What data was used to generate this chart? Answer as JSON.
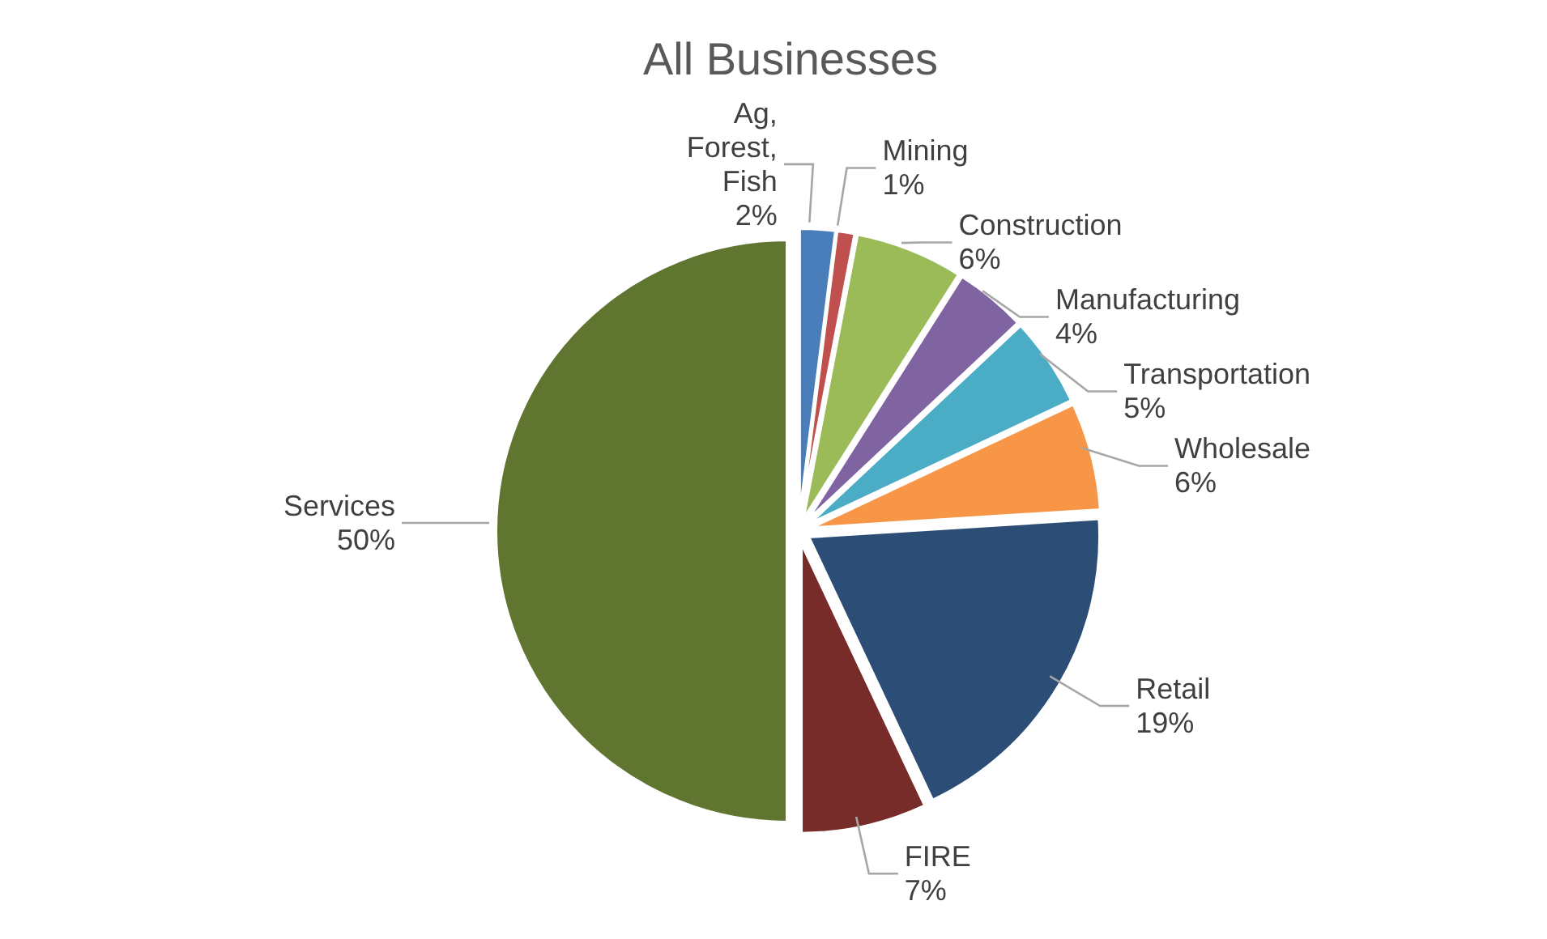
{
  "chart_data": {
    "type": "pie",
    "title": "All Businesses",
    "categories": [
      "Ag, Forest, Fish",
      "Mining",
      "Construction",
      "Manufacturing",
      "Transportation",
      "Wholesale",
      "Retail",
      "FIRE",
      "Services"
    ],
    "values": [
      2,
      1,
      6,
      4,
      5,
      6,
      19,
      7,
      50
    ],
    "value_labels": [
      "2%",
      "1%",
      "6%",
      "4%",
      "5%",
      "6%",
      "19%",
      "7%",
      "50%"
    ],
    "colors": [
      "#4a7ebb",
      "#c0504d",
      "#9bbb59",
      "#8064a2",
      "#4bacc6",
      "#f79646",
      "#2c4d75",
      "#772c2a",
      "#5f7530"
    ]
  }
}
